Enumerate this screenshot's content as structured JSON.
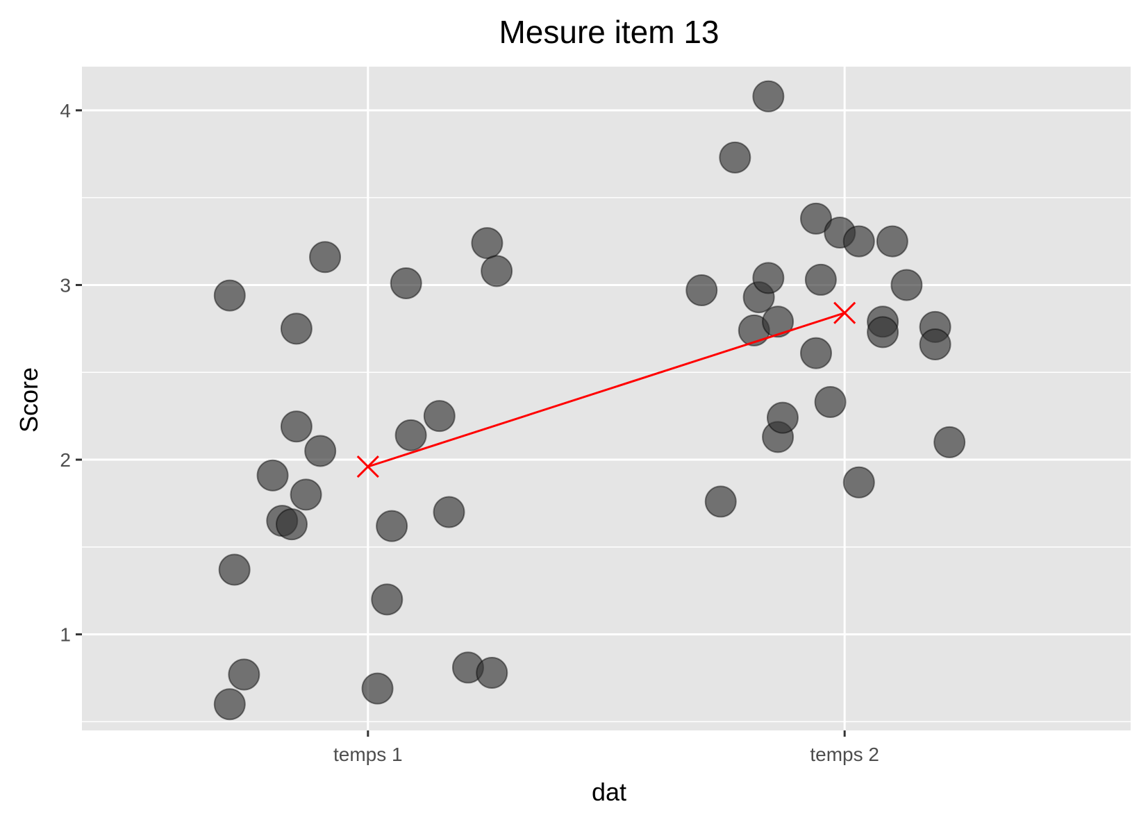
{
  "chart_data": {
    "type": "scatter",
    "title": "Mesure item 13",
    "xlabel": "dat",
    "ylabel": "Score",
    "categories": [
      "temps 1",
      "temps 2"
    ],
    "y_ticks": [
      1,
      2,
      3,
      4
    ],
    "ylim": [
      0.45,
      4.25
    ],
    "grid": true,
    "point_color": "#333333",
    "point_alpha": 0.65,
    "mean_color": "#ff0000",
    "panel_color": "#e5e5e5",
    "series": [
      {
        "category": "temps 1",
        "points": [
          {
            "x": 0.71,
            "y": 2.94
          },
          {
            "x": 0.72,
            "y": 1.37
          },
          {
            "x": 0.71,
            "y": 0.6
          },
          {
            "x": 0.74,
            "y": 0.77
          },
          {
            "x": 0.8,
            "y": 1.91
          },
          {
            "x": 0.82,
            "y": 1.65
          },
          {
            "x": 0.84,
            "y": 1.63
          },
          {
            "x": 0.85,
            "y": 2.75
          },
          {
            "x": 0.85,
            "y": 2.19
          },
          {
            "x": 0.87,
            "y": 1.8
          },
          {
            "x": 0.9,
            "y": 2.05
          },
          {
            "x": 0.91,
            "y": 3.16
          },
          {
            "x": 1.02,
            "y": 0.69
          },
          {
            "x": 1.04,
            "y": 1.2
          },
          {
            "x": 1.05,
            "y": 1.62
          },
          {
            "x": 1.08,
            "y": 3.01
          },
          {
            "x": 1.09,
            "y": 2.14
          },
          {
            "x": 1.15,
            "y": 2.25
          },
          {
            "x": 1.17,
            "y": 1.7
          },
          {
            "x": 1.21,
            "y": 0.81
          },
          {
            "x": 1.25,
            "y": 3.24
          },
          {
            "x": 1.26,
            "y": 0.78
          },
          {
            "x": 1.27,
            "y": 3.08
          }
        ]
      },
      {
        "category": "temps 2",
        "points": [
          {
            "x": 1.7,
            "y": 2.97
          },
          {
            "x": 1.74,
            "y": 1.76
          },
          {
            "x": 1.77,
            "y": 3.73
          },
          {
            "x": 1.81,
            "y": 2.74
          },
          {
            "x": 1.82,
            "y": 2.93
          },
          {
            "x": 1.84,
            "y": 3.04
          },
          {
            "x": 1.84,
            "y": 4.08
          },
          {
            "x": 1.86,
            "y": 2.79
          },
          {
            "x": 1.86,
            "y": 2.13
          },
          {
            "x": 1.87,
            "y": 2.24
          },
          {
            "x": 1.94,
            "y": 2.61
          },
          {
            "x": 1.94,
            "y": 3.38
          },
          {
            "x": 1.95,
            "y": 3.03
          },
          {
            "x": 1.97,
            "y": 2.33
          },
          {
            "x": 1.99,
            "y": 3.3
          },
          {
            "x": 2.03,
            "y": 1.87
          },
          {
            "x": 2.03,
            "y": 3.25
          },
          {
            "x": 2.08,
            "y": 2.79
          },
          {
            "x": 2.08,
            "y": 2.73
          },
          {
            "x": 2.1,
            "y": 3.25
          },
          {
            "x": 2.13,
            "y": 3.0
          },
          {
            "x": 2.19,
            "y": 2.76
          },
          {
            "x": 2.19,
            "y": 2.66
          },
          {
            "x": 2.22,
            "y": 2.1
          }
        ]
      }
    ],
    "means": [
      {
        "category": "temps 1",
        "x": 1,
        "y": 1.96
      },
      {
        "category": "temps 2",
        "x": 2,
        "y": 2.84
      }
    ]
  }
}
